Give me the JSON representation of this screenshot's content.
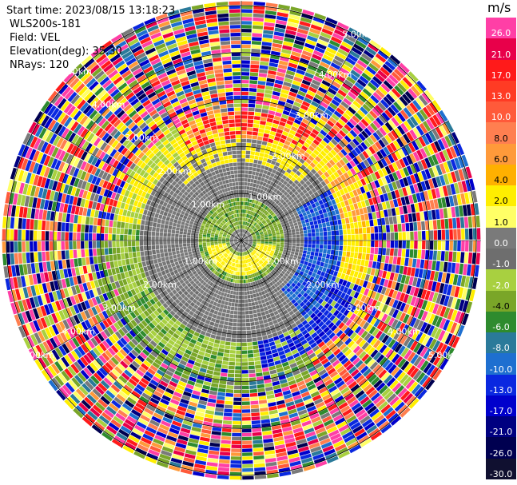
{
  "meta": {
    "start_time": "Start time: 2023/08/15 13:18:23",
    "instrument": "WLS200s-181",
    "field": "Field: VEL",
    "elevation": "Elevation(deg): 35.30",
    "nrays": "NRays: 120"
  },
  "colorbar": {
    "title": "m/s",
    "ticks": [
      "26.0",
      "21.0",
      "17.0",
      "13.0",
      "10.0",
      "8.0",
      "6.0",
      "4.0",
      "2.0",
      "1.0",
      "0.0",
      "-1.0",
      "-2.0",
      "-4.0",
      "-6.0",
      "-8.0",
      "-10.0",
      "-13.0",
      "-17.0",
      "-21.0",
      "-26.0",
      "-30.0"
    ],
    "colors": [
      "#ff3fa6",
      "#e8004a",
      "#ff1a1a",
      "#ff3b24",
      "#ff5a3a",
      "#ff7f50",
      "#ff9a3a",
      "#ffb000",
      "#ffee00",
      "#ffff66",
      "#7a7a7a",
      "#6e6e6e",
      "#a8d040",
      "#7aa628",
      "#2e8b2e",
      "#2a7a9a",
      "#1e6fd0",
      "#0a28e0",
      "#0000cc",
      "#000080",
      "#000050",
      "#101030"
    ]
  },
  "chart_data": {
    "type": "heatmap",
    "projection": "polar (PPI scan)",
    "field": "VEL",
    "units": "m/s",
    "nrays": 120,
    "elevation_deg": 35.3,
    "range_rings_km": [
      1.0,
      2.0,
      3.0,
      4.0,
      5.0
    ],
    "range_ring_labels": [
      "1.00km",
      "2.00km",
      "3.00km",
      "4.00km",
      "5.00km"
    ],
    "azimuth_lines_deg": [
      0,
      30,
      60,
      90,
      120,
      150,
      180,
      210,
      240,
      270,
      300,
      330
    ],
    "color_scale_min": -30.0,
    "color_scale_max": 26.0,
    "pattern_notes": [
      "near ring (<1 km): mostly green/yellow small velocities",
      "1-2 km: grey (~0 m/s) with yellow bands",
      "north arc ~2.3 km: yellow/orange/red (positive)",
      "south-east arc ~2.3 km: blue (negative)",
      "beyond ~3 km: noisy random colors"
    ]
  }
}
